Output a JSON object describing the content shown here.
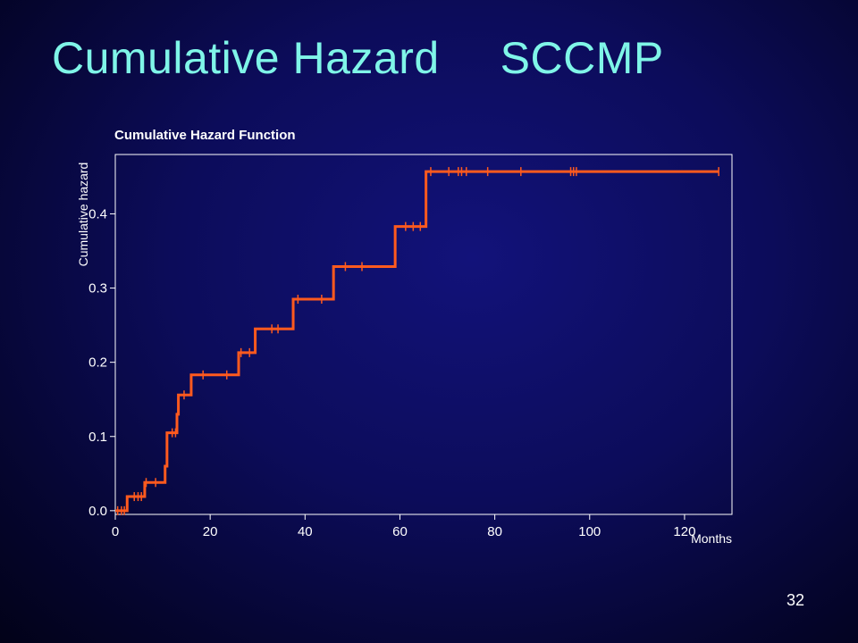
{
  "slide": {
    "title_main": "Cumulative Hazard",
    "title_tag": "SCCMP",
    "page_number": "32"
  },
  "colors": {
    "background": "#0c0c5a",
    "title": "#7ff5e8",
    "line": "#ff5a1e",
    "axis": "#ffffff"
  },
  "chart_data": {
    "type": "line",
    "step": true,
    "title": "Cumulative Hazard Function",
    "xlabel": "Months",
    "ylabel": "Cumulative hazard",
    "xlim": [
      0,
      130
    ],
    "ylim": [
      -0.005,
      0.48
    ],
    "xticks": [
      0,
      20,
      40,
      60,
      80,
      100,
      120
    ],
    "yticks": [
      0.0,
      0.1,
      0.2,
      0.3,
      0.4
    ],
    "ytick_labels": [
      "0.0",
      "0.1",
      "0.2",
      "0.3",
      "0.4"
    ],
    "grid": false,
    "series": [
      {
        "steps": [
          [
            0,
            0.0
          ],
          [
            2.5,
            0.019
          ],
          [
            6.2,
            0.038
          ],
          [
            10.5,
            0.06
          ],
          [
            10.9,
            0.105
          ],
          [
            13.0,
            0.13
          ],
          [
            13.3,
            0.156
          ],
          [
            16.0,
            0.183
          ],
          [
            26.0,
            0.213
          ],
          [
            29.5,
            0.245
          ],
          [
            37.5,
            0.285
          ],
          [
            46.0,
            0.329
          ],
          [
            59.0,
            0.383
          ],
          [
            65.5,
            0.457
          ],
          [
            127.2,
            0.457
          ]
        ],
        "censored": [
          [
            0.5,
            0.0
          ],
          [
            1.3,
            0.0
          ],
          [
            1.9,
            0.0
          ],
          [
            4.0,
            0.019
          ],
          [
            4.8,
            0.019
          ],
          [
            5.5,
            0.019
          ],
          [
            6.5,
            0.038
          ],
          [
            8.5,
            0.038
          ],
          [
            12.0,
            0.105
          ],
          [
            12.7,
            0.105
          ],
          [
            14.5,
            0.156
          ],
          [
            18.5,
            0.183
          ],
          [
            23.5,
            0.183
          ],
          [
            26.5,
            0.213
          ],
          [
            28.3,
            0.213
          ],
          [
            33.0,
            0.245
          ],
          [
            34.3,
            0.245
          ],
          [
            38.5,
            0.285
          ],
          [
            43.5,
            0.285
          ],
          [
            48.5,
            0.329
          ],
          [
            52.0,
            0.329
          ],
          [
            61.2,
            0.383
          ],
          [
            62.8,
            0.383
          ],
          [
            64.3,
            0.383
          ],
          [
            66.5,
            0.457
          ],
          [
            70.3,
            0.457
          ],
          [
            72.3,
            0.457
          ],
          [
            73.0,
            0.457
          ],
          [
            74.0,
            0.457
          ],
          [
            78.5,
            0.457
          ],
          [
            85.5,
            0.457
          ],
          [
            96.0,
            0.457
          ],
          [
            96.6,
            0.457
          ],
          [
            97.2,
            0.457
          ],
          [
            127.2,
            0.457
          ]
        ]
      }
    ]
  }
}
